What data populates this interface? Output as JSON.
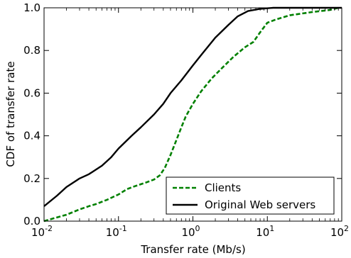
{
  "chart_data": {
    "type": "line",
    "title": "",
    "xlabel": "Transfer rate (Mb/s)",
    "ylabel": "CDF of transfer rate",
    "xscale": "log",
    "xlim": [
      0.01,
      100
    ],
    "ylim": [
      0.0,
      1.0
    ],
    "x_ticks": [
      {
        "base": "10",
        "exp": "-2",
        "value": 0.01
      },
      {
        "base": "10",
        "exp": "-1",
        "value": 0.1
      },
      {
        "base": "10",
        "exp": "0",
        "value": 1
      },
      {
        "base": "10",
        "exp": "1",
        "value": 10
      },
      {
        "base": "10",
        "exp": "2",
        "value": 100
      }
    ],
    "y_ticks": [
      "0.0",
      "0.2",
      "0.4",
      "0.6",
      "0.8",
      "1.0"
    ],
    "grid": false,
    "legend_position": "bottom-right",
    "series": [
      {
        "name": "Clients",
        "color": "#008000",
        "style": "dashed",
        "points": [
          [
            0.01,
            0.0
          ],
          [
            0.014,
            0.015
          ],
          [
            0.02,
            0.03
          ],
          [
            0.03,
            0.055
          ],
          [
            0.04,
            0.07
          ],
          [
            0.05,
            0.08
          ],
          [
            0.07,
            0.1
          ],
          [
            0.1,
            0.125
          ],
          [
            0.13,
            0.15
          ],
          [
            0.17,
            0.165
          ],
          [
            0.23,
            0.18
          ],
          [
            0.3,
            0.195
          ],
          [
            0.36,
            0.215
          ],
          [
            0.42,
            0.25
          ],
          [
            0.5,
            0.31
          ],
          [
            0.6,
            0.38
          ],
          [
            0.7,
            0.44
          ],
          [
            0.8,
            0.49
          ],
          [
            1.0,
            0.55
          ],
          [
            1.3,
            0.61
          ],
          [
            1.8,
            0.67
          ],
          [
            2.5,
            0.72
          ],
          [
            3.5,
            0.77
          ],
          [
            5.0,
            0.815
          ],
          [
            6.5,
            0.84
          ],
          [
            8.0,
            0.885
          ],
          [
            10.0,
            0.93
          ],
          [
            13.0,
            0.945
          ],
          [
            20.0,
            0.965
          ],
          [
            40.0,
            0.98
          ],
          [
            70.0,
            0.99
          ],
          [
            90.0,
            1.0
          ]
        ]
      },
      {
        "name": "Original Web servers",
        "color": "#000000",
        "style": "solid",
        "points": [
          [
            0.01,
            0.07
          ],
          [
            0.015,
            0.12
          ],
          [
            0.02,
            0.16
          ],
          [
            0.03,
            0.2
          ],
          [
            0.04,
            0.22
          ],
          [
            0.06,
            0.26
          ],
          [
            0.08,
            0.3
          ],
          [
            0.1,
            0.34
          ],
          [
            0.15,
            0.4
          ],
          [
            0.2,
            0.44
          ],
          [
            0.3,
            0.5
          ],
          [
            0.4,
            0.55
          ],
          [
            0.5,
            0.6
          ],
          [
            0.7,
            0.66
          ],
          [
            1.0,
            0.73
          ],
          [
            1.3,
            0.78
          ],
          [
            2.0,
            0.86
          ],
          [
            3.0,
            0.92
          ],
          [
            4.0,
            0.96
          ],
          [
            5.5,
            0.985
          ],
          [
            8.0,
            0.995
          ],
          [
            12.0,
            1.0
          ],
          [
            100.0,
            1.0
          ]
        ]
      }
    ]
  }
}
